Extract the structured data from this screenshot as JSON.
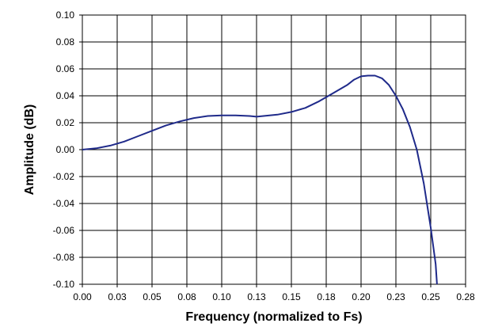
{
  "chart_data": {
    "type": "line",
    "title": "",
    "xlabel": "Frequency (normalized to Fs)",
    "ylabel": "Amplitude (dB)",
    "xlim": [
      0,
      0.275
    ],
    "ylim": [
      -0.1,
      0.1
    ],
    "grid": true,
    "x_tick_labels": [
      "0.00",
      "0.03",
      "0.05",
      "0.08",
      "0.10",
      "0.13",
      "0.15",
      "0.18",
      "0.20",
      "0.23",
      "0.25",
      "0.28"
    ],
    "y_tick_labels": [
      "0.10",
      "0.08",
      "0.06",
      "0.04",
      "0.02",
      "0.00",
      "-0.02",
      "-0.04",
      "-0.06",
      "-0.08",
      "-0.10"
    ],
    "series_color": "#1f2a8a",
    "series": [
      {
        "x": [
          0.0,
          0.01,
          0.02,
          0.03,
          0.04,
          0.05,
          0.06,
          0.07,
          0.08,
          0.09,
          0.1,
          0.11,
          0.12,
          0.125,
          0.13,
          0.14,
          0.15,
          0.16,
          0.17,
          0.18,
          0.19,
          0.195,
          0.2,
          0.205,
          0.21,
          0.215,
          0.22,
          0.225,
          0.23,
          0.235,
          0.24,
          0.245,
          0.25,
          0.2535,
          0.2545
        ],
        "y": [
          0.0,
          0.001,
          0.003,
          0.006,
          0.01,
          0.014,
          0.018,
          0.021,
          0.0235,
          0.025,
          0.0255,
          0.0255,
          0.025,
          0.0245,
          0.025,
          0.026,
          0.028,
          0.031,
          0.036,
          0.042,
          0.048,
          0.052,
          0.0545,
          0.055,
          0.055,
          0.053,
          0.048,
          0.04,
          0.03,
          0.017,
          0.0,
          -0.025,
          -0.058,
          -0.085,
          -0.1
        ]
      }
    ]
  }
}
